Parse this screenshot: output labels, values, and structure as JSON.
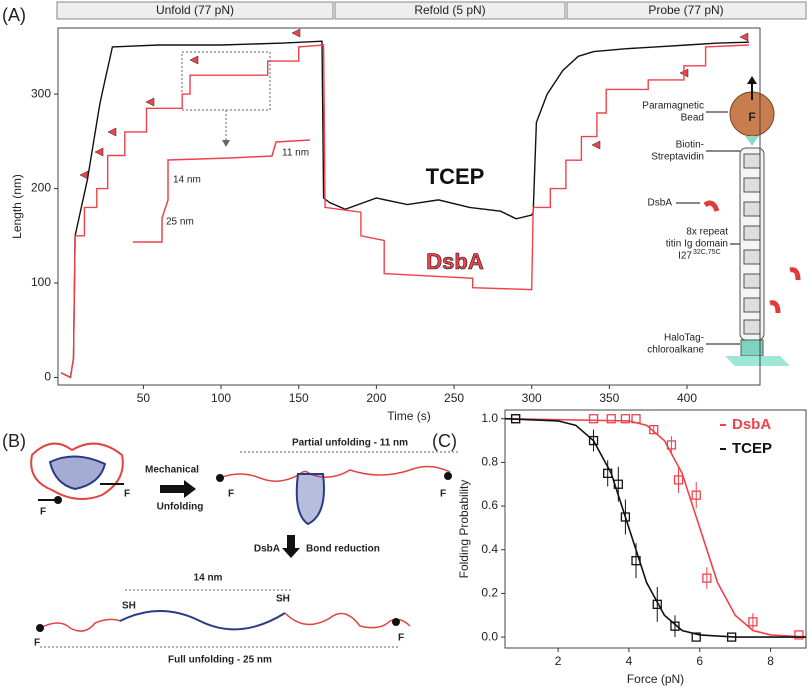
{
  "chart_data": [
    {
      "type": "line",
      "panel": "(A)",
      "xlabel": "Time (s)",
      "ylabel": "Length (nm)",
      "xlim": [
        -5,
        447
      ],
      "ylim": [
        -8,
        370
      ],
      "xticks": [
        50,
        100,
        150,
        200,
        250,
        300,
        350,
        400
      ],
      "yticks": [
        0,
        100,
        200,
        300
      ],
      "phases": [
        "Unfold (77 pN)",
        "Refold (5 pN)",
        "Probe (77 pN)"
      ],
      "series": [
        {
          "name": "TCEP",
          "color": "#111111",
          "x": [
            -3,
            3,
            5,
            6,
            8,
            10,
            12,
            14,
            16,
            18,
            20,
            22,
            24,
            26,
            28,
            30,
            60,
            100,
            140,
            165,
            166,
            170,
            180,
            200,
            220,
            240,
            260,
            280,
            290,
            300,
            301,
            303,
            310,
            320,
            330,
            340,
            360,
            380,
            400,
            420,
            440
          ],
          "values": [
            5,
            0,
            20,
            150,
            165,
            180,
            195,
            210,
            230,
            250,
            270,
            290,
            305,
            320,
            335,
            350,
            352,
            352,
            354,
            356,
            190,
            185,
            178,
            190,
            183,
            188,
            180,
            176,
            168,
            172,
            175,
            270,
            300,
            325,
            340,
            345,
            348,
            350,
            352,
            354,
            355
          ]
        },
        {
          "name": "DsbA",
          "color": "#f0424a",
          "x": [
            -3,
            3,
            5,
            6,
            12,
            12,
            20,
            20,
            27,
            27,
            38,
            38,
            52,
            52,
            75,
            75,
            80,
            80,
            130,
            130,
            150,
            150,
            166,
            167,
            190,
            190,
            205,
            205,
            262,
            262,
            300,
            301,
            312,
            312,
            322,
            322,
            332,
            332,
            342,
            342,
            348,
            348,
            375,
            375,
            398,
            398,
            412,
            412,
            440
          ],
          "values": [
            5,
            0,
            20,
            150,
            150,
            180,
            180,
            200,
            200,
            235,
            235,
            260,
            260,
            285,
            285,
            300,
            300,
            320,
            320,
            335,
            335,
            350,
            352,
            180,
            175,
            150,
            145,
            110,
            105,
            95,
            93,
            180,
            180,
            200,
            200,
            230,
            230,
            255,
            255,
            280,
            280,
            305,
            305,
            315,
            315,
            330,
            330,
            350,
            352
          ]
        }
      ],
      "inset_labels": [
        "11 nm",
        "14 nm",
        "25 nm"
      ],
      "schematic": {
        "bead": [
          "Paramagnetic",
          "Bead"
        ],
        "force": "F",
        "linker": [
          "Biotin-",
          "Streptavidin"
        ],
        "enzyme": "DsbA",
        "protein": [
          "8x repeat",
          "titin Ig domain"
        ],
        "domain": "I27",
        "domain_sup": "32C,75C",
        "anchor": [
          "HaloTag-",
          "chloroalkane"
        ]
      }
    },
    {
      "type": "scatter",
      "panel": "(C)",
      "xlabel": "Force (pN)",
      "ylabel": "Folding Probability",
      "xlim": [
        0.5,
        9
      ],
      "ylim": [
        -0.05,
        1.04
      ],
      "xticks": [
        2,
        4,
        6,
        8
      ],
      "yticks": [
        {
          "value": 0,
          "label": "0.0"
        },
        0.2,
        0.4,
        0.6,
        0.8,
        {
          "value": 1,
          "label": "1.0"
        }
      ],
      "series": [
        {
          "name": "DsbA",
          "color": "#f0424a",
          "x": [
            0.8,
            3.0,
            3.5,
            3.9,
            4.2,
            4.7,
            5.2,
            5.4,
            5.9,
            6.2,
            7.5,
            8.8
          ],
          "values": [
            1,
            1,
            1,
            1,
            1,
            0.95,
            0.88,
            0.72,
            0.65,
            0.27,
            0.07,
            0.01
          ],
          "errors": [
            0,
            0,
            0,
            0,
            0,
            0.02,
            0.04,
            0.06,
            0.06,
            0.05,
            0.04,
            0
          ],
          "fit_x": [
            0.5,
            4,
            4.5,
            5,
            5.5,
            6,
            6.5,
            7,
            7.5,
            8,
            9
          ],
          "fit_values": [
            1,
            0.99,
            0.97,
            0.9,
            0.75,
            0.5,
            0.25,
            0.1,
            0.03,
            0.01,
            0
          ]
        },
        {
          "name": "TCEP",
          "color": "#111111",
          "x": [
            0.8,
            3.0,
            3.4,
            3.7,
            3.9,
            4.2,
            4.8,
            5.3,
            5.9,
            6.9
          ],
          "values": [
            1,
            0.9,
            0.75,
            0.7,
            0.55,
            0.35,
            0.15,
            0.05,
            0,
            0
          ],
          "errors": [
            0,
            0.05,
            0.06,
            0.08,
            0.08,
            0.08,
            0.08,
            0.05,
            0,
            0
          ],
          "fit_x": [
            0.5,
            2,
            2.5,
            3,
            3.5,
            4,
            4.5,
            5,
            5.5,
            6,
            7,
            9
          ],
          "fit_values": [
            1,
            0.99,
            0.97,
            0.9,
            0.75,
            0.5,
            0.25,
            0.1,
            0.03,
            0.01,
            0,
            0
          ]
        }
      ]
    }
  ],
  "diagram": {
    "panel": "(B)",
    "step1": [
      "Mechanical",
      "Unfolding"
    ],
    "partial": "Partial unfolding - 11 nm",
    "step2_enzyme": "DsbA",
    "step2": "Bond reduction",
    "span": "14 nm",
    "full": "Full unfolding - 25 nm",
    "thiols": [
      "SH",
      "SH"
    ],
    "force": "F"
  }
}
